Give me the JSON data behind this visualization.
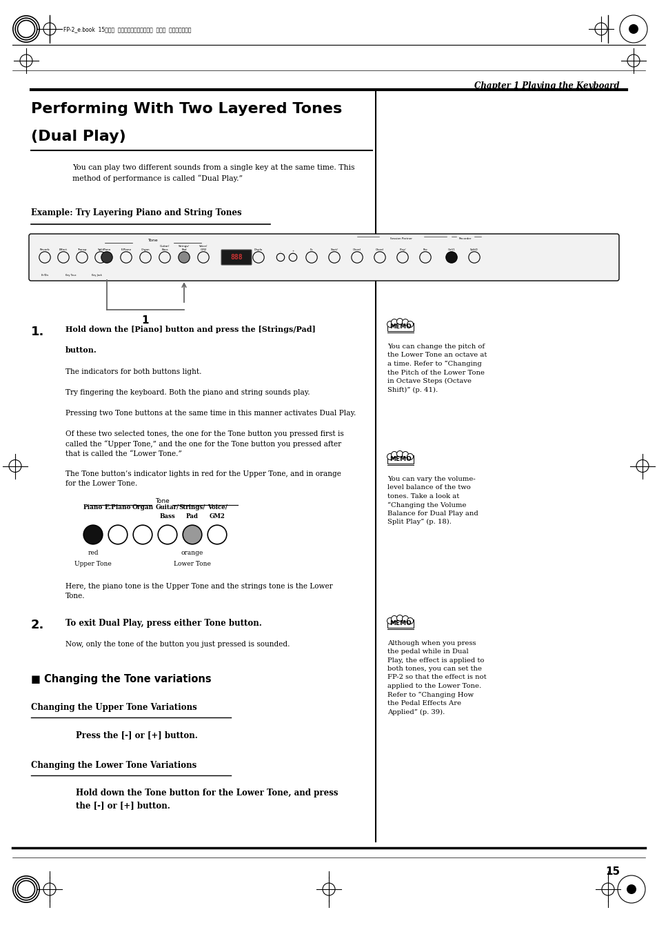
{
  "page_bg": "#ffffff",
  "page_width": 9.54,
  "page_height": 13.51,
  "header_japanese": "FP-2_e.book  15ページ  ２００４年１１月２６日  金曜日  午後４時２５分",
  "chapter_label": "Chapter 1 Playing the Keyboard",
  "main_title_line1": "Performing With Two Layered Tones",
  "main_title_line2": "(Dual Play)",
  "intro_text": "You can play two different sounds from a single key at the same time. This\nmethod of performance is called “Dual Play.”",
  "example_heading": "Example: Try Layering Piano and String Tones",
  "step1_p1": "The indicators for both buttons light.",
  "step1_p2": "Try fingering the keyboard. Both the piano and string sounds play.",
  "step1_p3": "Pressing two Tone buttons at the same time in this manner activates Dual Play.",
  "step1_p4": "Of these two selected tones, the one for the Tone button you pressed first is\ncalled the “Upper Tone,” and the one for the Tone button you pressed after\nthat is called the “Lower Tone.”",
  "step1_p5": "The Tone button’s indicator lights in red for the Upper Tone, and in orange\nfor the Lower Tone.",
  "tone_label": "Tone",
  "red_label": "red",
  "upper_tone_label": "Upper Tone",
  "orange_label": "orange",
  "lower_tone_label": "Lower Tone",
  "step1_p6": "Here, the piano tone is the Upper Tone and the strings tone is the Lower\nTone.",
  "step2_title": "To exit Dual Play, press either Tone button.",
  "step2_p1": "Now, only the tone of the button you just pressed is sounded.",
  "section2_title": "■ Changing the Tone variations",
  "sub1_heading": "Changing the Upper Tone Variations",
  "sub1_text": "Press the [-] or [+] button.",
  "sub2_heading": "Changing the Lower Tone Variations",
  "sub2_text": "Hold down the Tone button for the Lower Tone, and press\nthe [-] or [+] button.",
  "memo1_title": "MEMO",
  "memo1_text": "You can change the pitch of\nthe Lower Tone an octave at\na time. Refer to “Changing\nthe Pitch of the Lower Tone\nin Octave Steps (Octave\nShift)” (p. 41).",
  "memo2_title": "MEMO",
  "memo2_text": "You can vary the volume-\nlevel balance of the two\ntones. Take a look at\n“Changing the Volume\nBalance for Dual Play and\nSplit Play” (p. 18).",
  "memo3_title": "MEMO",
  "memo3_text": "Although when you press\nthe pedal while in Dual\nPlay, the effect is applied to\nboth tones, you can set the\nFP-2 so that the effect is not\napplied to the Lower Tone.\nRefer to “Changing How\nthe Pedal Effects Are\nApplied” (p. 39).",
  "page_number": "15"
}
